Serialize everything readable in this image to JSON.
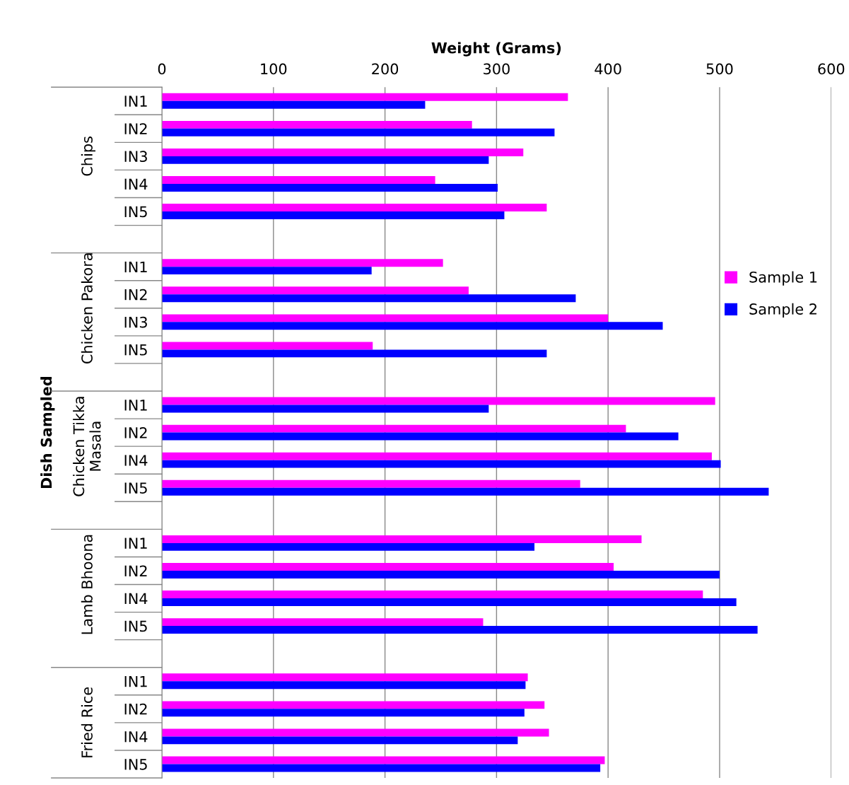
{
  "chart_data": {
    "type": "bar",
    "orientation": "horizontal",
    "xlabel": "Weight (Grams)",
    "ylabel": "Dish Sampled",
    "categories": [
      "IN1",
      "IN2",
      "IN3",
      "IN4",
      "IN5",
      null,
      "IN1",
      "IN2",
      "IN3",
      "IN5",
      null,
      "IN1",
      "IN2",
      "IN4",
      "IN5",
      null,
      "IN1",
      "IN2",
      "IN4",
      "IN5",
      null,
      "IN1",
      "IN2",
      "IN4",
      "IN5"
    ],
    "series": [
      {
        "name": "Sample 1",
        "color": "#ff00ff",
        "values": [
          364,
          278,
          324,
          245,
          345,
          null,
          252,
          275,
          400,
          189,
          null,
          496,
          416,
          493,
          375,
          null,
          430,
          405,
          485,
          288,
          null,
          328,
          343,
          347,
          397
        ]
      },
      {
        "name": "Sample 2",
        "color": "#0000ff",
        "values": [
          236,
          352,
          293,
          301,
          307,
          null,
          188,
          371,
          449,
          345,
          null,
          293,
          463,
          501,
          544,
          null,
          334,
          500,
          515,
          534,
          null,
          326,
          325,
          319,
          393
        ]
      }
    ],
    "annotations": [
      "Chips",
      "Chicken Pakora",
      "Chicken Tikka\nMasala",
      "Lamb Bhoona",
      "Fried Rice"
    ],
    "xlim": [
      0,
      600
    ],
    "xticks": [
      0,
      100,
      200,
      300,
      400,
      500,
      600
    ],
    "grid": "x",
    "legend": "right"
  }
}
